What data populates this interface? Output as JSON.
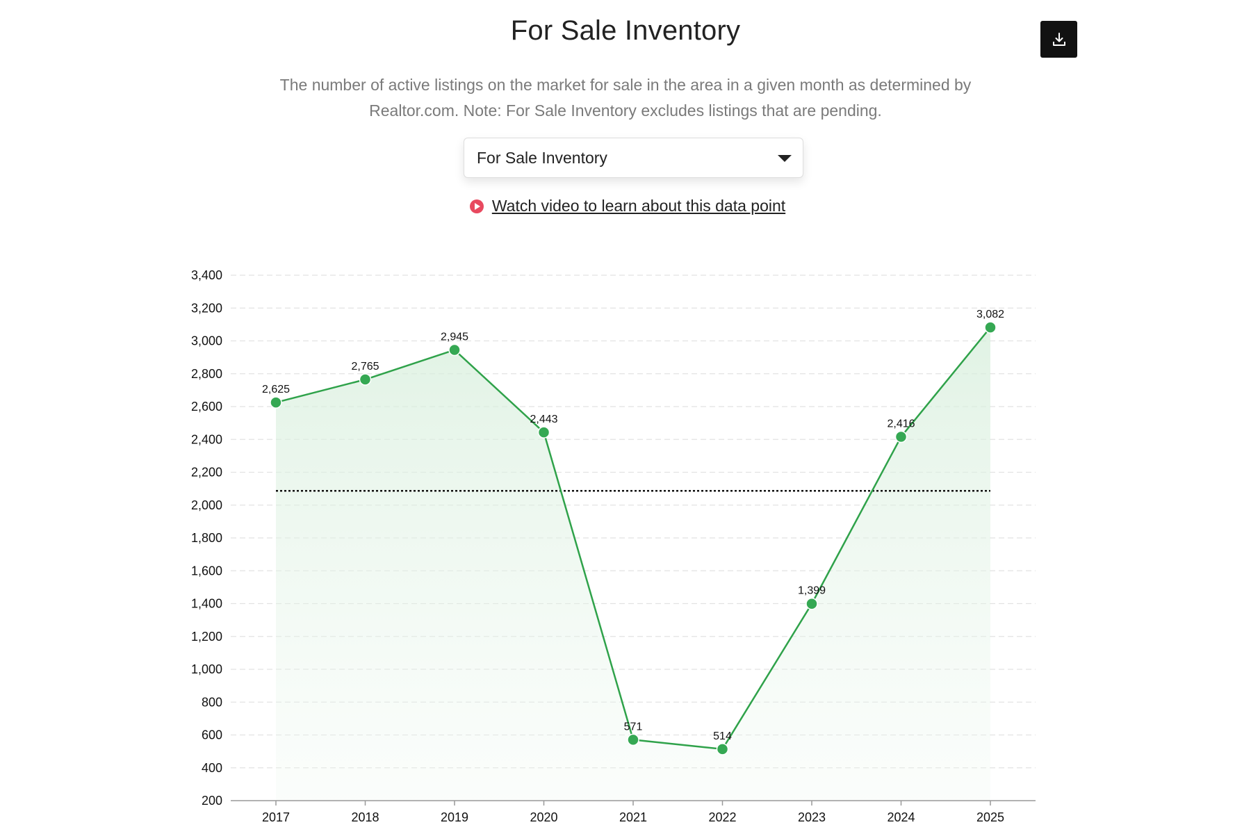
{
  "header": {
    "title": "For Sale Inventory",
    "subtitle_line1": "The number of active listings on the market for sale in the area in a given month as determined by",
    "subtitle_line2": "Realtor.com. Note: For Sale Inventory excludes listings that are pending.",
    "download_icon": "download-icon"
  },
  "metric_select": {
    "selected": "For Sale Inventory"
  },
  "video_link": {
    "label": "Watch video to learn about this data point",
    "icon": "play-circle-icon"
  },
  "colors": {
    "line": "#2fa24a",
    "marker": "#35a853",
    "fill": "#e3f3e6",
    "reference_line": "#111111",
    "grid": "#e2e2e2",
    "play_icon": "#e8495f",
    "download_button": "#111111"
  },
  "chart_data": {
    "type": "area",
    "categories": [
      "2017",
      "2018",
      "2019",
      "2020",
      "2021",
      "2022",
      "2023",
      "2024",
      "2025"
    ],
    "values": [
      2625,
      2765,
      2945,
      2443,
      571,
      514,
      1399,
      2416,
      3082
    ],
    "data_labels": [
      "2,625",
      "2,765",
      "2,945",
      "2,443",
      "571",
      "514",
      "1,399",
      "2,416",
      "3,082"
    ],
    "yticks": [
      200,
      400,
      600,
      800,
      1000,
      1200,
      1400,
      1600,
      1800,
      2000,
      2200,
      2400,
      2600,
      2800,
      3000,
      3200,
      3400
    ],
    "ytick_labels": [
      "200",
      "400",
      "600",
      "800",
      "1,000",
      "1,200",
      "1,400",
      "1,600",
      "1,800",
      "2,000",
      "2,200",
      "2,400",
      "2,600",
      "2,800",
      "3,000",
      "3,200",
      "3,400"
    ],
    "ylim": [
      200,
      3400
    ],
    "reference_value": 2087,
    "reference_style": "dotted",
    "grid": true,
    "grid_style": "dashed",
    "title": "",
    "xlabel": "",
    "ylabel": ""
  }
}
